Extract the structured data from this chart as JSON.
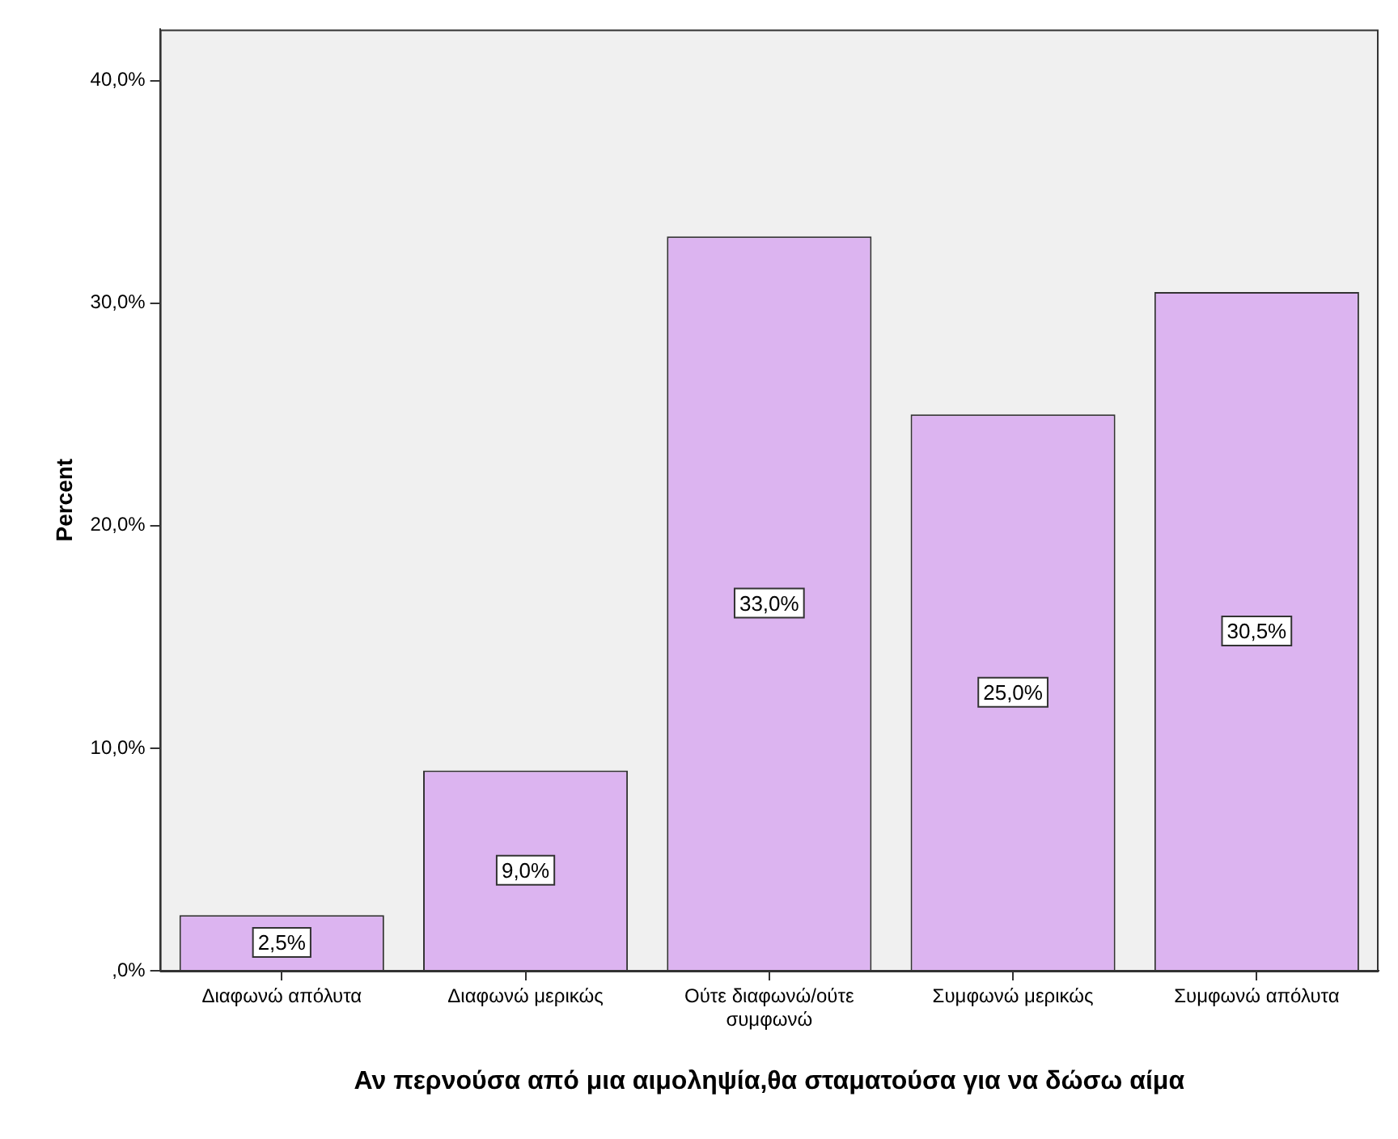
{
  "chart_data": {
    "type": "bar",
    "xlabel": "Αν περνούσα από μια αιμοληψία,θα σταματούσα για να δώσω αίμα",
    "ylabel": "Percent",
    "categories": [
      "Διαφωνώ απόλυτα",
      "Διαφωνώ μερικώς",
      "Ούτε διαφωνώ/ούτε συμφωνώ",
      "Συμφωνώ μερικώς",
      "Συμφωνώ απόλυτα"
    ],
    "values": [
      2.5,
      9.0,
      33.0,
      25.0,
      30.5
    ],
    "value_labels": [
      "2,5%",
      "9,0%",
      "33,0%",
      "25,0%",
      "30,5%"
    ],
    "color": "#dcb4f0",
    "ylim": [
      0,
      42.3
    ],
    "yticks": [
      {
        "value": 0,
        "label": ",0%"
      },
      {
        "value": 10,
        "label": "10,0%"
      },
      {
        "value": 20,
        "label": "20,0%"
      },
      {
        "value": 30,
        "label": "30,0%"
      },
      {
        "value": 40,
        "label": "40,0%"
      }
    ],
    "grid": false
  }
}
